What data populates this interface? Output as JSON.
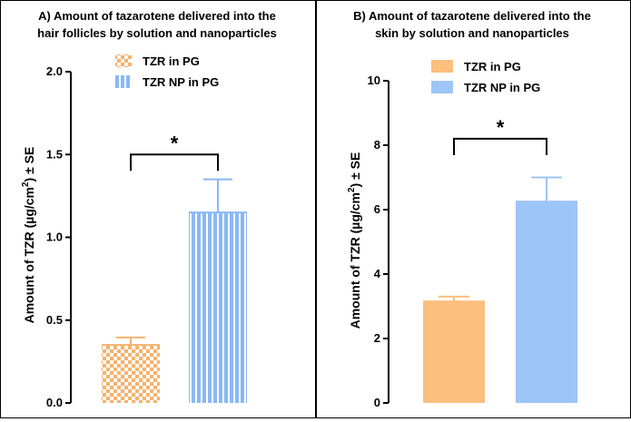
{
  "figure": {
    "divider_color": "#000000"
  },
  "chart_data": [
    {
      "type": "bar",
      "title": "A) Amount of tazarotene delivered into the hair follicles by solution and nanoparticles",
      "title_lines": [
        "A) Amount of tazarotene delivered into the",
        "hair follicles by solution and nanoparticles"
      ],
      "ylabel": "Amount of TZR (µg/cm²) ± SE",
      "ylabel_parts": [
        "Amount of TZR (µg/cm",
        "2",
        ") ± SE"
      ],
      "ylim": [
        0,
        2.0
      ],
      "yticks": [
        0.0,
        0.5,
        1.0,
        1.5,
        2.0
      ],
      "ytick_labels": [
        "0.0",
        "0.5",
        "1.0",
        "1.5",
        "2.0"
      ],
      "categories": [
        "TZR in PG",
        "TZR NP in PG"
      ],
      "values": [
        0.35,
        1.15
      ],
      "errors": [
        0.045,
        0.2
      ],
      "series": [
        {
          "name": "TZR in PG",
          "color": "#f6b26b",
          "pattern": "checkered"
        },
        {
          "name": "TZR NP in PG",
          "color": "#8ab8f5",
          "pattern": "vertical-stripes"
        }
      ],
      "legend": "top-center",
      "significance": {
        "label": "*",
        "between": [
          0,
          1
        ],
        "level": 1.5
      },
      "grid": false
    },
    {
      "type": "bar",
      "title": "B) Amount of tazarotene delivered into the skin by solution and nanoparticles",
      "title_lines": [
        "B) Amount of tazarotene delivered into the",
        "skin by solution and nanoparticles"
      ],
      "ylabel": "Amount of TZR (µg/cm²) ± SE",
      "ylabel_parts": [
        "Amount of TZR (µg/cm",
        "2",
        ") ± SE"
      ],
      "ylim": [
        0,
        10
      ],
      "yticks": [
        0,
        2,
        4,
        6,
        8,
        10
      ],
      "ytick_labels": [
        "0",
        "2",
        "4",
        "6",
        "8",
        "10"
      ],
      "categories": [
        "TZR in PG",
        "TZR NP in PG"
      ],
      "values": [
        3.15,
        6.25
      ],
      "errors": [
        0.15,
        0.75
      ],
      "series": [
        {
          "name": "TZR in PG",
          "color": "#fbbf7e",
          "pattern": "solid"
        },
        {
          "name": "TZR NP in PG",
          "color": "#9ec5f7",
          "pattern": "solid"
        }
      ],
      "legend": "top-center",
      "significance": {
        "label": "*",
        "between": [
          0,
          1
        ],
        "level": 8.2
      },
      "grid": false
    }
  ]
}
